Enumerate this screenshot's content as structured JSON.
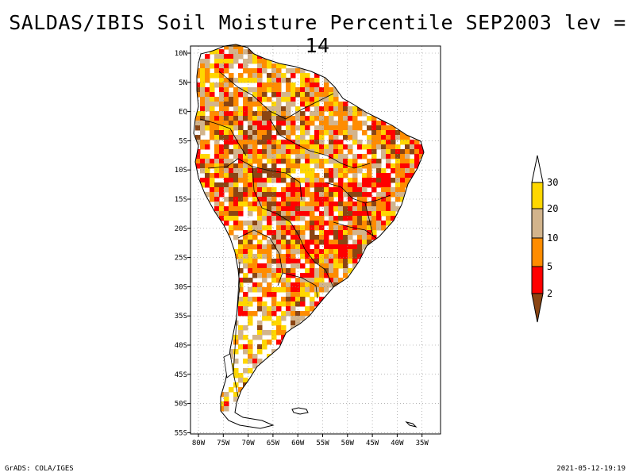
{
  "title": "SALDAS/IBIS Soil Moisture Percentile SEP2003 lev = 14",
  "map": {
    "lat_labels": [
      "10N",
      "5N",
      "EQ",
      "5S",
      "10S",
      "15S",
      "20S",
      "25S",
      "30S",
      "35S",
      "40S",
      "45S",
      "50S",
      "55S"
    ],
    "lon_labels": [
      "80W",
      "75W",
      "70W",
      "65W",
      "60W",
      "55W",
      "50W",
      "45W",
      "40W",
      "35W"
    ],
    "grid": true,
    "grid_style": "dotted"
  },
  "legend": {
    "placement": "right",
    "labels": [
      "2",
      "5",
      "10",
      "20",
      "30"
    ],
    "colors": {
      "below_2": "#8b4513",
      "2_5": "#ff0000",
      "5_10": "#ff8c00",
      "10_20": "#d2b48c",
      "20_30": "#ffd700",
      "above_30": "#ffffff"
    }
  },
  "footer": {
    "left": "GrADS: COLA/IGES",
    "right": "2021-05-12-19:19"
  }
}
